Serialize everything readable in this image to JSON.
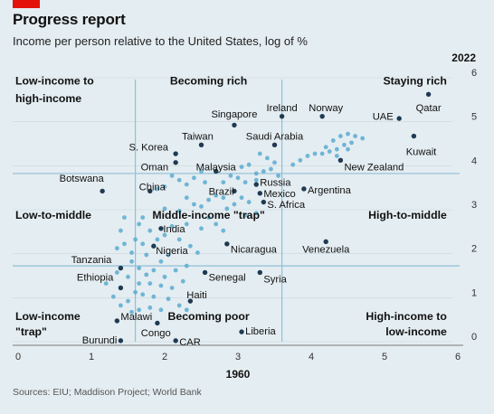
{
  "header": {
    "title": "Progress report",
    "subtitle": "Income per person relative to the United States, log of %"
  },
  "source": "Sources: EIU; Maddison Project; World Bank",
  "colors": {
    "background": "#e4edf1",
    "brand_red": "#e3120b",
    "highlight_dot": "#1f3a52",
    "other_dot": "#5aaad0",
    "divider": "#8fbfd9",
    "grid": "#c9d7de",
    "text": "#111111",
    "axis_text": "#333333"
  },
  "chart_data": {
    "type": "scatter",
    "xlabel": "1960",
    "ylabel": "2022",
    "xlim": [
      0,
      6
    ],
    "ylim": [
      -0.2,
      6
    ],
    "xticks": [
      0,
      1,
      2,
      3,
      4,
      5,
      6
    ],
    "yticks": [
      0,
      1,
      2,
      3,
      4,
      5,
      6
    ],
    "dividers": {
      "x": [
        1.6,
        3.6
      ],
      "y": [
        1.6,
        3.7
      ]
    },
    "quadrant_labels": [
      {
        "text": "Low-income to",
        "x": 0.0,
        "y": 5.8,
        "align": "start",
        "bold": true
      },
      {
        "text": "high-income",
        "x": 0.0,
        "y": 5.4,
        "align": "start",
        "bold": true
      },
      {
        "text": "Becoming rich",
        "x": 2.6,
        "y": 5.8,
        "align": "middle",
        "bold": true
      },
      {
        "text": "Staying rich",
        "x": 5.85,
        "y": 5.8,
        "align": "end",
        "bold": true
      },
      {
        "text": "Low-to-middle",
        "x": 0.0,
        "y": 2.75,
        "align": "start",
        "bold": true
      },
      {
        "text": "Middle-income \"trap\"",
        "x": 2.6,
        "y": 2.75,
        "align": "middle",
        "bold": true
      },
      {
        "text": "High-to-middle",
        "x": 5.85,
        "y": 2.75,
        "align": "end",
        "bold": true
      },
      {
        "text": "Low-income",
        "x": 0.0,
        "y": 0.45,
        "align": "start",
        "bold": true
      },
      {
        "text": "\"trap\"",
        "x": 0.0,
        "y": 0.1,
        "align": "start",
        "bold": true
      },
      {
        "text": "Becoming poor",
        "x": 2.6,
        "y": 0.45,
        "align": "middle",
        "bold": true
      },
      {
        "text": "High-income to",
        "x": 5.85,
        "y": 0.45,
        "align": "end",
        "bold": true
      },
      {
        "text": "low-income",
        "x": 5.85,
        "y": 0.1,
        "align": "end",
        "bold": true
      }
    ],
    "highlighted": [
      {
        "name": "Qatar",
        "x": 5.6,
        "y": 5.5,
        "lx": 5.6,
        "ly": 5.2,
        "anchor": "middle"
      },
      {
        "name": "UAE",
        "x": 5.2,
        "y": 4.95,
        "lx": 5.12,
        "ly": 5.0,
        "anchor": "end"
      },
      {
        "name": "Kuwait",
        "x": 5.4,
        "y": 4.55,
        "lx": 5.5,
        "ly": 4.2,
        "anchor": "middle"
      },
      {
        "name": "Norway",
        "x": 4.15,
        "y": 5.0,
        "lx": 4.2,
        "ly": 5.2,
        "anchor": "middle"
      },
      {
        "name": "Ireland",
        "x": 3.6,
        "y": 5.0,
        "lx": 3.6,
        "ly": 5.2,
        "anchor": "middle"
      },
      {
        "name": "Singapore",
        "x": 2.95,
        "y": 4.8,
        "lx": 2.95,
        "ly": 5.05,
        "anchor": "middle"
      },
      {
        "name": "Saudi Arabia",
        "x": 3.5,
        "y": 4.35,
        "lx": 3.5,
        "ly": 4.55,
        "anchor": "middle"
      },
      {
        "name": "Taiwan",
        "x": 2.5,
        "y": 4.35,
        "lx": 2.45,
        "ly": 4.55,
        "anchor": "middle"
      },
      {
        "name": "S. Korea",
        "x": 2.15,
        "y": 4.15,
        "lx": 2.05,
        "ly": 4.3,
        "anchor": "end"
      },
      {
        "name": "Oman",
        "x": 2.15,
        "y": 3.95,
        "lx": 2.05,
        "ly": 3.85,
        "anchor": "end"
      },
      {
        "name": "Malaysia",
        "x": 2.7,
        "y": 3.75,
        "lx": 2.7,
        "ly": 3.85,
        "anchor": "middle"
      },
      {
        "name": "New Zealand",
        "x": 4.4,
        "y": 4.0,
        "lx": 4.45,
        "ly": 3.85,
        "anchor": "start"
      },
      {
        "name": "Botswana",
        "x": 1.15,
        "y": 3.3,
        "lx": 1.17,
        "ly": 3.6,
        "anchor": "end"
      },
      {
        "name": "China",
        "x": 1.8,
        "y": 3.3,
        "lx": 1.65,
        "ly": 3.4,
        "anchor": "start"
      },
      {
        "name": "Brazil",
        "x": 2.95,
        "y": 3.3,
        "lx": 2.6,
        "ly": 3.3,
        "anchor": "start"
      },
      {
        "name": "Russia",
        "x": 3.25,
        "y": 3.45,
        "lx": 3.3,
        "ly": 3.5,
        "anchor": "start"
      },
      {
        "name": "Mexico",
        "x": 3.3,
        "y": 3.25,
        "lx": 3.35,
        "ly": 3.25,
        "anchor": "start"
      },
      {
        "name": "S. Africa",
        "x": 3.35,
        "y": 3.05,
        "lx": 3.4,
        "ly": 3.0,
        "anchor": "start"
      },
      {
        "name": "Argentina",
        "x": 3.9,
        "y": 3.35,
        "lx": 3.95,
        "ly": 3.33,
        "anchor": "start"
      },
      {
        "name": "India",
        "x": 1.95,
        "y": 2.45,
        "lx": 1.98,
        "ly": 2.45,
        "anchor": "start"
      },
      {
        "name": "Nigeria",
        "x": 1.85,
        "y": 2.05,
        "lx": 1.88,
        "ly": 1.95,
        "anchor": "start"
      },
      {
        "name": "Nicaragua",
        "x": 2.85,
        "y": 2.1,
        "lx": 2.9,
        "ly": 1.98,
        "anchor": "start"
      },
      {
        "name": "Venezuela",
        "x": 4.2,
        "y": 2.15,
        "lx": 4.2,
        "ly": 1.98,
        "anchor": "middle"
      },
      {
        "name": "Tanzania",
        "x": 1.4,
        "y": 1.55,
        "lx": 1.0,
        "ly": 1.75,
        "anchor": "middle"
      },
      {
        "name": "Senegal",
        "x": 2.55,
        "y": 1.45,
        "lx": 2.6,
        "ly": 1.35,
        "anchor": "start"
      },
      {
        "name": "Syria",
        "x": 3.3,
        "y": 1.45,
        "lx": 3.35,
        "ly": 1.3,
        "anchor": "start"
      },
      {
        "name": "Ethiopia",
        "x": 1.4,
        "y": 1.1,
        "lx": 1.3,
        "ly": 1.35,
        "anchor": "end"
      },
      {
        "name": "Haiti",
        "x": 2.35,
        "y": 0.8,
        "lx": 2.3,
        "ly": 0.95,
        "anchor": "start"
      },
      {
        "name": "Malawi",
        "x": 1.35,
        "y": 0.35,
        "lx": 1.4,
        "ly": 0.45,
        "anchor": "start"
      },
      {
        "name": "Congo",
        "x": 1.9,
        "y": 0.3,
        "lx": 1.88,
        "ly": 0.08,
        "anchor": "middle"
      },
      {
        "name": "Liberia",
        "x": 3.05,
        "y": 0.1,
        "lx": 3.1,
        "ly": 0.12,
        "anchor": "start"
      },
      {
        "name": "Burundi",
        "x": 1.4,
        "y": -0.1,
        "lx": 1.35,
        "ly": -0.08,
        "anchor": "end"
      },
      {
        "name": "CAR",
        "x": 2.15,
        "y": -0.1,
        "lx": 2.2,
        "ly": -0.12,
        "anchor": "start"
      }
    ],
    "others": [
      [
        4.2,
        4.3
      ],
      [
        4.3,
        4.45
      ],
      [
        4.4,
        4.55
      ],
      [
        4.5,
        4.6
      ],
      [
        4.6,
        4.55
      ],
      [
        4.7,
        4.5
      ],
      [
        4.55,
        4.4
      ],
      [
        4.45,
        4.35
      ],
      [
        4.35,
        4.25
      ],
      [
        4.25,
        4.2
      ],
      [
        4.15,
        4.15
      ],
      [
        4.05,
        4.15
      ],
      [
        3.95,
        4.1
      ],
      [
        3.85,
        4.0
      ],
      [
        3.75,
        3.9
      ],
      [
        4.35,
        4.1
      ],
      [
        4.5,
        4.25
      ],
      [
        3.3,
        4.15
      ],
      [
        3.4,
        4.05
      ],
      [
        3.5,
        3.95
      ],
      [
        3.45,
        3.8
      ],
      [
        3.35,
        3.75
      ],
      [
        3.25,
        3.7
      ],
      [
        3.15,
        3.9
      ],
      [
        3.05,
        3.85
      ],
      [
        3.55,
        3.65
      ],
      [
        3.25,
        3.55
      ],
      [
        3.1,
        3.5
      ],
      [
        3.0,
        3.6
      ],
      [
        2.9,
        3.65
      ],
      [
        2.8,
        3.5
      ],
      [
        2.5,
        3.75
      ],
      [
        2.4,
        3.6
      ],
      [
        2.3,
        3.45
      ],
      [
        2.2,
        3.55
      ],
      [
        2.1,
        3.65
      ],
      [
        2.55,
        3.5
      ],
      [
        2.7,
        3.2
      ],
      [
        2.6,
        3.1
      ],
      [
        2.8,
        3.15
      ],
      [
        3.05,
        3.15
      ],
      [
        3.15,
        3.05
      ],
      [
        2.95,
        3.0
      ],
      [
        2.85,
        2.9
      ],
      [
        3.25,
        2.8
      ],
      [
        3.1,
        2.75
      ],
      [
        2.0,
        3.4
      ],
      [
        1.9,
        3.35
      ],
      [
        2.3,
        3.15
      ],
      [
        2.4,
        3.0
      ],
      [
        2.5,
        2.95
      ],
      [
        2.2,
        2.85
      ],
      [
        2.0,
        2.9
      ],
      [
        2.6,
        2.7
      ],
      [
        2.7,
        2.55
      ],
      [
        2.5,
        2.45
      ],
      [
        2.3,
        2.55
      ],
      [
        2.1,
        2.5
      ],
      [
        2.8,
        2.4
      ],
      [
        1.7,
        2.7
      ],
      [
        1.65,
        2.55
      ],
      [
        1.8,
        2.4
      ],
      [
        1.6,
        2.2
      ],
      [
        1.7,
        2.1
      ],
      [
        1.9,
        2.2
      ],
      [
        2.0,
        2.3
      ],
      [
        2.2,
        2.2
      ],
      [
        2.35,
        2.05
      ],
      [
        2.45,
        1.9
      ],
      [
        2.05,
        1.85
      ],
      [
        1.75,
        1.85
      ],
      [
        1.95,
        1.7
      ],
      [
        1.55,
        1.9
      ],
      [
        1.45,
        2.7
      ],
      [
        1.4,
        2.4
      ],
      [
        1.45,
        2.1
      ],
      [
        1.35,
        2.0
      ],
      [
        1.55,
        1.7
      ],
      [
        1.65,
        1.55
      ],
      [
        1.75,
        1.4
      ],
      [
        1.85,
        1.5
      ],
      [
        2.0,
        1.35
      ],
      [
        2.15,
        1.5
      ],
      [
        2.3,
        1.6
      ],
      [
        2.25,
        1.25
      ],
      [
        2.1,
        1.1
      ],
      [
        1.95,
        1.15
      ],
      [
        1.8,
        1.2
      ],
      [
        1.65,
        1.2
      ],
      [
        1.5,
        1.35
      ],
      [
        1.6,
        1.0
      ],
      [
        1.7,
        0.95
      ],
      [
        1.85,
        0.9
      ],
      [
        2.05,
        0.85
      ],
      [
        1.5,
        0.8
      ],
      [
        1.55,
        0.55
      ],
      [
        1.65,
        0.6
      ],
      [
        1.8,
        0.65
      ],
      [
        1.95,
        0.6
      ],
      [
        2.2,
        0.7
      ],
      [
        2.3,
        0.6
      ],
      [
        1.4,
        0.7
      ],
      [
        1.3,
        0.9
      ],
      [
        1.2,
        1.2
      ],
      [
        1.35,
        1.45
      ]
    ]
  }
}
